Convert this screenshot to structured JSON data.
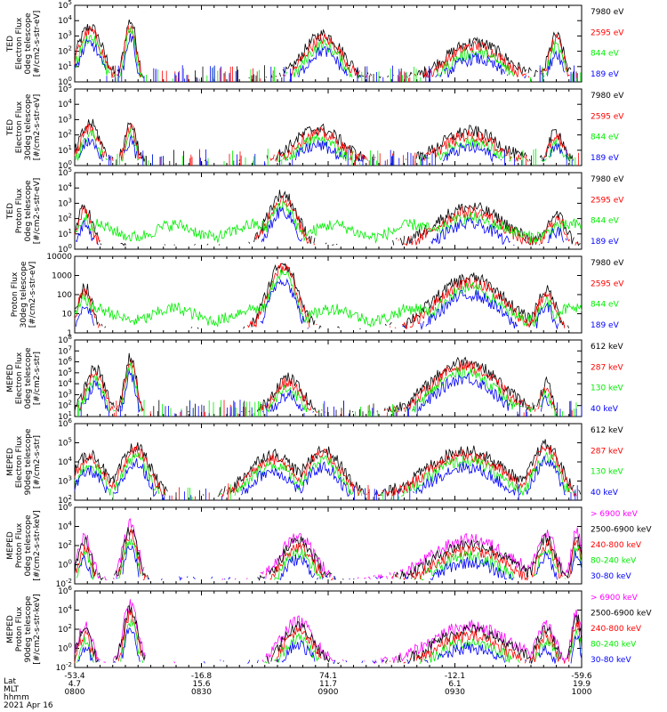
{
  "colors": {
    "black": "#000000",
    "red": "#ff0000",
    "green": "#00ee00",
    "blue": "#0000ff",
    "magenta": "#ff00ff"
  },
  "chart_data": [
    {
      "type": "line",
      "ylabel": [
        "TED",
        "Electron Flux",
        "0deg telescope",
        "[#/cm2-s-str-eV]"
      ],
      "ylim": [
        1,
        100000
      ],
      "y_tick_labels": [
        "10^0",
        "10^1",
        "10^2",
        "10^3",
        "10^4",
        "10^5"
      ],
      "series": [
        {
          "name": "7980 eV",
          "color": "#000000"
        },
        {
          "name": "2595 eV",
          "color": "#ff0000"
        },
        {
          "name": "844 eV",
          "color": "#00ee00"
        },
        {
          "name": "189 eV",
          "color": "#0000ff"
        }
      ]
    },
    {
      "type": "line",
      "ylabel": [
        "TED",
        "Electron Flux",
        "30deg telescope",
        "[#/cm2-s-str-eV]"
      ],
      "ylim": [
        1,
        100000
      ],
      "y_tick_labels": [
        "10^0",
        "10^1",
        "10^2",
        "10^3",
        "10^4",
        "10^5"
      ],
      "series": [
        {
          "name": "7980 eV",
          "color": "#000000"
        },
        {
          "name": "2595 eV",
          "color": "#ff0000"
        },
        {
          "name": "844 eV",
          "color": "#00ee00"
        },
        {
          "name": "189 eV",
          "color": "#0000ff"
        }
      ]
    },
    {
      "type": "line",
      "ylabel": [
        "TED",
        "Proton Flux",
        "0deg telescope",
        "[#/cm2-s-str-eV]"
      ],
      "ylim": [
        1,
        100000
      ],
      "y_tick_labels": [
        "10^0",
        "10^1",
        "10^2",
        "10^3",
        "10^4",
        "10^5"
      ],
      "series": [
        {
          "name": "7980 eV",
          "color": "#000000"
        },
        {
          "name": "2595 eV",
          "color": "#ff0000"
        },
        {
          "name": "844 eV",
          "color": "#00ee00"
        },
        {
          "name": "189 eV",
          "color": "#0000ff"
        }
      ]
    },
    {
      "type": "line",
      "ylabel": [
        "Proton Flux",
        "30deg telescope",
        "[#/cm2-s-str-eV]"
      ],
      "ylim": [
        1,
        10000
      ],
      "y_tick_labels": [
        "1",
        "10",
        "100",
        "1000",
        "10000"
      ],
      "series": [
        {
          "name": "7980 eV",
          "color": "#000000"
        },
        {
          "name": "2595 eV",
          "color": "#ff0000"
        },
        {
          "name": "844 eV",
          "color": "#00ee00"
        },
        {
          "name": "189 eV",
          "color": "#0000ff"
        }
      ]
    },
    {
      "type": "line",
      "ylabel": [
        "MEPED",
        "Electron Flux",
        "0deg telescope",
        "[#/cm2-s-str]"
      ],
      "ylim": [
        10,
        100000000
      ],
      "y_tick_labels": [
        "10^1",
        "10^2",
        "10^3",
        "10^4",
        "10^5",
        "10^6",
        "10^7",
        "10^8"
      ],
      "series": [
        {
          "name": "612 keV",
          "color": "#000000"
        },
        {
          "name": "287 keV",
          "color": "#ff0000"
        },
        {
          "name": "130 keV",
          "color": "#00ee00"
        },
        {
          "name": "40 keV",
          "color": "#0000ff"
        }
      ]
    },
    {
      "type": "line",
      "ylabel": [
        "MEPED",
        "Electron Flux",
        "90deg telescope",
        "[#/cm2-s-str]"
      ],
      "ylim": [
        100,
        1000000
      ],
      "y_tick_labels": [
        "10^2",
        "10^3",
        "10^4",
        "10^5",
        "10^6"
      ],
      "series": [
        {
          "name": "612 keV",
          "color": "#000000"
        },
        {
          "name": "287 keV",
          "color": "#ff0000"
        },
        {
          "name": "130 keV",
          "color": "#00ee00"
        },
        {
          "name": "40 keV",
          "color": "#0000ff"
        }
      ]
    },
    {
      "type": "line",
      "ylabel": [
        "MEPED",
        "Proton Flux",
        "0deg telescope",
        "[#/cm2-s-str-keV]"
      ],
      "ylim": [
        0.01,
        1000000
      ],
      "y_tick_labels": [
        "10^-2",
        "10^0",
        "10^2",
        "10^4",
        "10^6"
      ],
      "series": [
        {
          "name": "> 6900 keV",
          "color": "#ff00ff"
        },
        {
          "name": "2500-6900 keV",
          "color": "#000000"
        },
        {
          "name": "240-800 keV",
          "color": "#ff0000"
        },
        {
          "name": "80-240 keV",
          "color": "#00ee00"
        },
        {
          "name": "30-80 keV",
          "color": "#0000ff"
        }
      ]
    },
    {
      "type": "line",
      "ylabel": [
        "MEPED",
        "Proton Flux",
        "90deg telescope",
        "[#/cm2-s-str-keV]"
      ],
      "ylim": [
        0.01,
        1000000
      ],
      "y_tick_labels": [
        "10^-2",
        "10^0",
        "10^2",
        "10^4",
        "10^6"
      ],
      "series": [
        {
          "name": "> 6900 keV",
          "color": "#ff00ff"
        },
        {
          "name": "2500-6900 keV",
          "color": "#000000"
        },
        {
          "name": "240-800 keV",
          "color": "#ff0000"
        },
        {
          "name": "80-240 keV",
          "color": "#00ee00"
        },
        {
          "name": "30-80 keV",
          "color": "#0000ff"
        }
      ]
    }
  ],
  "x_axis": {
    "row_labels": [
      "Lat",
      "MLT",
      "hhmm"
    ],
    "ticks": [
      {
        "lat": "-53.4",
        "mlt": "4.7",
        "hhmm": "0800"
      },
      {
        "lat": "-16.8",
        "mlt": "15.6",
        "hhmm": "0830"
      },
      {
        "lat": "74.1",
        "mlt": "11.7",
        "hhmm": "0900"
      },
      {
        "lat": "-12.1",
        "mlt": "6.1",
        "hhmm": "0930"
      },
      {
        "lat": "-59.6",
        "mlt": "19.9",
        "hhmm": "1000"
      }
    ],
    "date": "2021 Apr 16"
  }
}
